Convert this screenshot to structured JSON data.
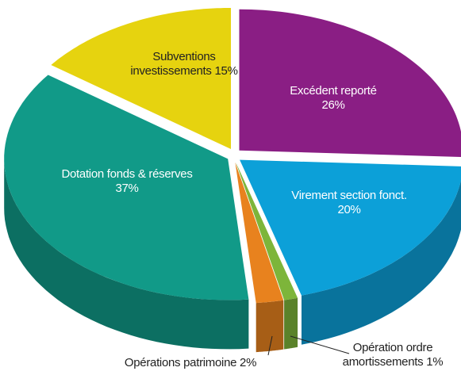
{
  "chart_data": {
    "type": "pie",
    "categories": [
      "Excédent reporté",
      "Virement section fonct.",
      "Opération ordre amortissements",
      "Opérations patrimoine",
      "Dotation fonds & réserves",
      "Subventions investissements"
    ],
    "values": [
      26,
      20,
      1,
      2,
      37,
      15
    ],
    "value_labels": [
      "26%",
      "20%",
      "1%",
      "2%",
      "37%",
      "15%"
    ],
    "colors": [
      "#8a1e84",
      "#0ca0d8",
      "#7db53a",
      "#e8821e",
      "#119a88",
      "#e6d30f"
    ]
  }
}
